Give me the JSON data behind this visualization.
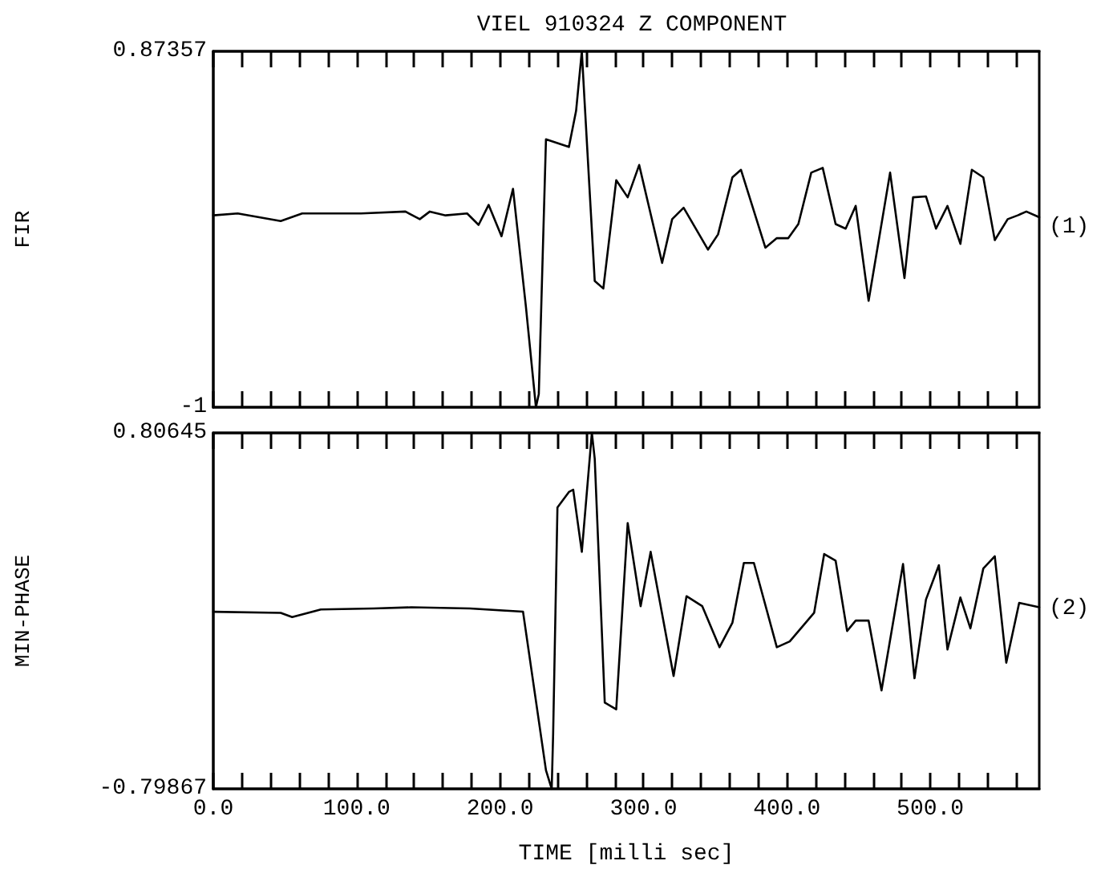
{
  "chart_data": [
    {
      "type": "line",
      "title": "VIEL 910324 Z COMPONENT",
      "ylabel": "FIR",
      "annotations": [
        "(1)"
      ],
      "tick_labels": "y",
      "marker": "none",
      "line_style": "solid",
      "xlim": [
        0,
        576
      ],
      "ylim": [
        -1,
        0.87357
      ],
      "yticks": [
        -1,
        0.87357
      ],
      "xticks": [
        0,
        20,
        40,
        60,
        80,
        100,
        120,
        140,
        160,
        180,
        200,
        220,
        240,
        260,
        280,
        300,
        320,
        340,
        360,
        380,
        400,
        420,
        440,
        460,
        480,
        500,
        520,
        540,
        560
      ],
      "x": [
        0,
        17,
        47,
        62,
        103,
        134,
        144,
        151,
        162,
        177,
        185,
        192,
        201,
        209,
        218,
        225,
        227,
        232,
        248,
        253,
        257,
        259,
        266,
        272,
        281,
        289,
        297,
        313,
        320,
        328,
        345,
        352,
        362,
        368,
        385,
        393,
        401,
        408,
        417,
        425,
        434,
        441,
        448,
        457,
        472,
        482,
        488,
        497,
        504,
        512,
        521,
        529,
        537,
        545,
        554,
        561,
        567,
        576
      ],
      "series": [
        {
          "color": "#000000",
          "values": [
            0.01,
            0.02,
            -0.02,
            0.02,
            0.02,
            0.03,
            -0.01,
            0.03,
            0.01,
            0.02,
            -0.04,
            0.065,
            -0.1,
            0.15,
            -0.47,
            -1,
            -0.93,
            0.41,
            0.37,
            0.56,
            0.87357,
            0.6,
            -0.335,
            -0.375,
            0.195,
            0.105,
            0.275,
            -0.24,
            -0.01,
            0.05,
            -0.17,
            -0.09,
            0.21,
            0.25,
            -0.16,
            -0.11,
            -0.11,
            -0.036,
            0.235,
            0.26,
            -0.036,
            -0.06,
            0.06,
            -0.44,
            0.235,
            -0.32,
            0.105,
            0.11,
            -0.06,
            0.06,
            -0.14,
            0.25,
            0.21,
            -0.12,
            -0.01,
            0.01,
            0.03,
            0.0
          ]
        }
      ]
    },
    {
      "type": "line",
      "ylabel": "MIN-PHASE",
      "xlabel": "TIME [milli sec]",
      "annotations": [
        "(2)"
      ],
      "marker": "none",
      "line_style": "solid",
      "xlim": [
        0,
        576
      ],
      "ylim": [
        -0.79867,
        0.80645
      ],
      "yticks": [
        -0.79867,
        0.80645
      ],
      "xticks": [
        {
          "value": 0,
          "label": "0.0"
        },
        {
          "value": 20,
          "label": null
        },
        {
          "value": 40,
          "label": null
        },
        {
          "value": 60,
          "label": null
        },
        {
          "value": 80,
          "label": null
        },
        {
          "value": 100,
          "label": "100.0"
        },
        {
          "value": 120,
          "label": null
        },
        {
          "value": 140,
          "label": null
        },
        {
          "value": 160,
          "label": null
        },
        {
          "value": 180,
          "label": null
        },
        {
          "value": 200,
          "label": "200.0"
        },
        {
          "value": 220,
          "label": null
        },
        {
          "value": 240,
          "label": null
        },
        {
          "value": 260,
          "label": null
        },
        {
          "value": 280,
          "label": null
        },
        {
          "value": 300,
          "label": "300.0"
        },
        {
          "value": 320,
          "label": null
        },
        {
          "value": 340,
          "label": null
        },
        {
          "value": 360,
          "label": null
        },
        {
          "value": 380,
          "label": null
        },
        {
          "value": 400,
          "label": "400.0"
        },
        {
          "value": 420,
          "label": null
        },
        {
          "value": 440,
          "label": null
        },
        {
          "value": 460,
          "label": null
        },
        {
          "value": 480,
          "label": null
        },
        {
          "value": 500,
          "label": "500.0"
        },
        {
          "value": 520,
          "label": null
        },
        {
          "value": 540,
          "label": null
        },
        {
          "value": 560,
          "label": null
        }
      ],
      "x": [
        0,
        47,
        55,
        75,
        112,
        138,
        179,
        216,
        232,
        236,
        237,
        240,
        248,
        251,
        257,
        264,
        266,
        273,
        281,
        289,
        298,
        305,
        321,
        330,
        341,
        353,
        362,
        370,
        377,
        393,
        402,
        419,
        426,
        434,
        442,
        448,
        457,
        466,
        481,
        489,
        497,
        506,
        512,
        521,
        528,
        537,
        545,
        553,
        562,
        576
      ],
      "series": [
        {
          "color": "#000000",
          "values": [
            0.0,
            -0.005,
            -0.024,
            0.01,
            0.015,
            0.02,
            0.015,
            0.0,
            -0.715,
            -0.79867,
            -0.55,
            0.47,
            0.54,
            0.55,
            0.27,
            0.80645,
            0.69,
            -0.41,
            -0.44,
            0.4,
            0.025,
            0.27,
            -0.29,
            0.07,
            0.025,
            -0.16,
            -0.05,
            0.22,
            0.22,
            -0.16,
            -0.134,
            -0.005,
            0.26,
            0.23,
            -0.087,
            -0.04,
            -0.04,
            -0.355,
            0.215,
            -0.3,
            0.055,
            0.21,
            -0.17,
            0.064,
            -0.075,
            0.195,
            0.25,
            -0.23,
            0.04,
            0.02
          ]
        }
      ]
    }
  ]
}
